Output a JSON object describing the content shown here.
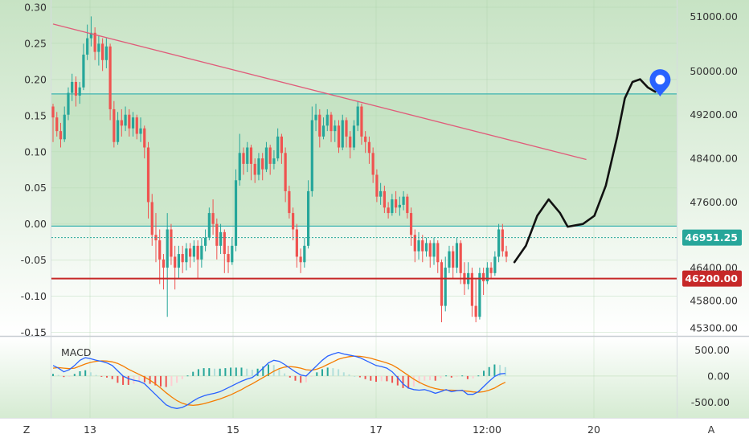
{
  "chart_data": [
    {
      "type": "candlestick",
      "x_ticks": [
        "13",
        "15",
        "17",
        "12:00",
        "20"
      ],
      "left_axis": {
        "ticks": [
          "0.30",
          "0.25",
          "0.20",
          "0.15",
          "0.10",
          "0.05",
          "0.00",
          "-0.05",
          "-0.10",
          "-0.15"
        ],
        "range": [
          -0.155,
          0.31
        ]
      },
      "right_axis": {
        "ticks": [
          "51000.00",
          "50000.00",
          "49200.00",
          "48400.00",
          "47600.00",
          "46400.00",
          "45800.00",
          "45300.00"
        ],
        "range": [
          45150,
          51300
        ]
      },
      "current_price": "46951.25",
      "support_price": "46200.00",
      "zone": {
        "top": 49580,
        "bottom": 47160
      },
      "trendline": {
        "from": [
          0,
          50860
        ],
        "to": [
          140,
          48380
        ]
      },
      "candles": [
        [
          49350,
          49150,
          49400,
          48700
        ],
        [
          49150,
          48900,
          49250,
          48800
        ],
        [
          48900,
          48750,
          49050,
          48600
        ],
        [
          48750,
          49200,
          49350,
          48700
        ],
        [
          49200,
          49600,
          49700,
          49100
        ],
        [
          49600,
          49800,
          49950,
          49450
        ],
        [
          49800,
          49550,
          49900,
          49350
        ],
        [
          49550,
          49700,
          49800,
          49400
        ],
        [
          49700,
          50300,
          50500,
          49650
        ],
        [
          50300,
          50600,
          50850,
          50200
        ],
        [
          50600,
          50700,
          51000,
          50450
        ],
        [
          50700,
          50350,
          50800,
          50200
        ],
        [
          50350,
          50500,
          50650,
          50100
        ],
        [
          50500,
          50200,
          50600,
          50000
        ],
        [
          50200,
          50450,
          50600,
          50050
        ],
        [
          50450,
          49300,
          50500,
          49100
        ],
        [
          49300,
          48700,
          49450,
          48600
        ],
        [
          48700,
          49100,
          49250,
          48650
        ],
        [
          49100,
          49000,
          49300,
          48800
        ],
        [
          49000,
          49200,
          49350,
          48900
        ],
        [
          49200,
          48950,
          49300,
          48800
        ],
        [
          48950,
          49150,
          49250,
          48800
        ],
        [
          49150,
          48850,
          49200,
          48750
        ],
        [
          48850,
          48950,
          49150,
          48700
        ],
        [
          48950,
          48600,
          49000,
          48400
        ],
        [
          48600,
          47600,
          48700,
          47300
        ],
        [
          47600,
          47000,
          47750,
          46800
        ],
        [
          47000,
          46900,
          47400,
          46500
        ],
        [
          46900,
          46550,
          47100,
          46100
        ],
        [
          46550,
          46400,
          46650,
          46000
        ],
        [
          46400,
          47100,
          47400,
          45500
        ],
        [
          47100,
          46600,
          47200,
          46450
        ],
        [
          46600,
          46400,
          46800,
          46000
        ],
        [
          46400,
          46650,
          46800,
          46200
        ],
        [
          46650,
          46500,
          46800,
          46300
        ],
        [
          46500,
          46750,
          46850,
          46350
        ],
        [
          46750,
          46600,
          46850,
          46400
        ],
        [
          46600,
          46800,
          46900,
          46500
        ],
        [
          46800,
          46550,
          46900,
          46200
        ],
        [
          46550,
          46800,
          46950,
          46400
        ],
        [
          46800,
          46950,
          47100,
          46700
        ],
        [
          46950,
          47400,
          47500,
          46900
        ],
        [
          47400,
          47200,
          47650,
          47000
        ],
        [
          47200,
          46800,
          47300,
          46550
        ],
        [
          46800,
          47050,
          47200,
          46650
        ],
        [
          47050,
          46650,
          47100,
          46300
        ],
        [
          46650,
          46500,
          46800,
          46300
        ],
        [
          46500,
          46800,
          46950,
          46450
        ],
        [
          46800,
          48000,
          48200,
          46700
        ],
        [
          48000,
          48500,
          48850,
          47900
        ],
        [
          48500,
          48300,
          48600,
          48100
        ],
        [
          48300,
          48600,
          48700,
          48150
        ],
        [
          48600,
          48300,
          48650,
          48000
        ],
        [
          48300,
          48100,
          48400,
          47950
        ],
        [
          48100,
          48400,
          48500,
          48000
        ],
        [
          48400,
          48200,
          48500,
          48000
        ],
        [
          48200,
          48600,
          48700,
          48150
        ],
        [
          48600,
          48300,
          48650,
          48100
        ],
        [
          48300,
          48400,
          48550,
          48200
        ],
        [
          48400,
          48800,
          48950,
          48350
        ],
        [
          48800,
          48500,
          48850,
          48300
        ],
        [
          48500,
          47800,
          48600,
          47600
        ],
        [
          47800,
          47400,
          47900,
          47300
        ],
        [
          47400,
          47100,
          47500,
          46900
        ],
        [
          47100,
          46600,
          47200,
          46400
        ],
        [
          46600,
          46500,
          46750,
          46300
        ],
        [
          46500,
          46800,
          46950,
          46400
        ],
        [
          46800,
          47800,
          48000,
          46750
        ],
        [
          47800,
          49100,
          49350,
          47700
        ],
        [
          49100,
          49200,
          49400,
          48900
        ],
        [
          49200,
          48800,
          49300,
          48600
        ],
        [
          48800,
          49000,
          49150,
          48750
        ],
        [
          49000,
          49200,
          49300,
          48900
        ],
        [
          49200,
          48900,
          49250,
          48700
        ],
        [
          48900,
          49000,
          49100,
          48700
        ],
        [
          49000,
          48600,
          49100,
          48500
        ],
        [
          48600,
          49100,
          49200,
          48550
        ],
        [
          49100,
          48800,
          49150,
          48600
        ],
        [
          48800,
          48600,
          48900,
          48400
        ],
        [
          48600,
          49000,
          49100,
          48550
        ],
        [
          49000,
          49350,
          49450,
          48900
        ],
        [
          49350,
          48800,
          49400,
          48650
        ],
        [
          48800,
          48700,
          48900,
          48500
        ],
        [
          48700,
          48500,
          48800,
          48300
        ],
        [
          48500,
          48100,
          48600,
          47950
        ],
        [
          48100,
          47700,
          48200,
          47600
        ],
        [
          47700,
          47800,
          47950,
          47550
        ],
        [
          47800,
          47500,
          47900,
          47400
        ],
        [
          47500,
          47400,
          47600,
          47300
        ],
        [
          47400,
          47650,
          47750,
          47350
        ],
        [
          47650,
          47500,
          47800,
          47400
        ],
        [
          47500,
          47550,
          47700,
          47350
        ],
        [
          47550,
          47700,
          47800,
          47450
        ],
        [
          47700,
          47400,
          47750,
          47300
        ],
        [
          47400,
          47000,
          47500,
          46800
        ],
        [
          47000,
          46700,
          47100,
          46500
        ],
        [
          46700,
          46900,
          47050,
          46550
        ],
        [
          46900,
          46700,
          47000,
          46500
        ],
        [
          46700,
          46850,
          46950,
          46600
        ],
        [
          46850,
          46600,
          46900,
          46400
        ],
        [
          46600,
          46850,
          46950,
          46450
        ],
        [
          46850,
          46500,
          46900,
          46300
        ],
        [
          46500,
          45700,
          46550,
          45400
        ],
        [
          45700,
          46400,
          46600,
          45600
        ],
        [
          46400,
          46700,
          46800,
          46300
        ],
        [
          46700,
          46400,
          46800,
          46200
        ],
        [
          46400,
          46850,
          46950,
          46300
        ],
        [
          46850,
          46300,
          46900,
          46100
        ],
        [
          46300,
          46100,
          46500,
          45900
        ],
        [
          46100,
          46300,
          46500,
          46000
        ],
        [
          46300,
          45700,
          46400,
          45500
        ],
        [
          45700,
          45500,
          46200,
          45400
        ],
        [
          45500,
          46300,
          46400,
          45450
        ],
        [
          46300,
          46150,
          46400,
          45900
        ],
        [
          46150,
          46400,
          46500,
          46100
        ],
        [
          46400,
          46300,
          46500,
          46200
        ],
        [
          46300,
          46600,
          46700,
          46250
        ],
        [
          46600,
          47100,
          47200,
          46500
        ],
        [
          47100,
          46700,
          47200,
          46600
        ],
        [
          46700,
          46600,
          46800,
          46500
        ]
      ],
      "projection": [
        [
          0,
          46500
        ],
        [
          3,
          46800
        ],
        [
          6,
          47350
        ],
        [
          9,
          47650
        ],
        [
          12,
          47400
        ],
        [
          14,
          47150
        ],
        [
          18,
          47200
        ],
        [
          21,
          47350
        ],
        [
          24,
          47900
        ],
        [
          27,
          48800
        ],
        [
          29,
          49500
        ],
        [
          31,
          49800
        ],
        [
          33,
          49850
        ],
        [
          35,
          49700
        ],
        [
          37,
          49620
        ]
      ]
    },
    {
      "type": "line",
      "title": "MACD",
      "y_ticks": [
        "500.00",
        "0.00",
        "-500.00"
      ],
      "ylim": [
        -800,
        750
      ],
      "series": [
        {
          "color": "#2962ff",
          "values": [
            200,
            150,
            80,
            120,
            200,
            300,
            350,
            330,
            300,
            280,
            250,
            200,
            100,
            0,
            -50,
            -80,
            -100,
            -150,
            -250,
            -350,
            -450,
            -550,
            -600,
            -620,
            -600,
            -550,
            -480,
            -420,
            -380,
            -350,
            -330,
            -300,
            -250,
            -200,
            -150,
            -100,
            -60,
            -30,
            50,
            150,
            250,
            300,
            280,
            220,
            150,
            80,
            20,
            0,
            100,
            200,
            300,
            380,
            420,
            450,
            420,
            400,
            380,
            350,
            300,
            250,
            200,
            180,
            150,
            80,
            -30,
            -150,
            -230,
            -260,
            -270,
            -260,
            -290,
            -330,
            -300,
            -260,
            -300,
            -280,
            -270,
            -350,
            -350,
            -300,
            -200,
            -100,
            -10,
            40,
            50
          ]
        },
        {
          "color": "#f57c00",
          "values": [
            150,
            160,
            150,
            140,
            150,
            190,
            230,
            260,
            280,
            290,
            285,
            270,
            240,
            190,
            130,
            80,
            30,
            -20,
            -80,
            -150,
            -230,
            -320,
            -400,
            -470,
            -520,
            -550,
            -560,
            -550,
            -530,
            -500,
            -470,
            -440,
            -400,
            -360,
            -310,
            -260,
            -200,
            -150,
            -90,
            -30,
            30,
            90,
            140,
            170,
            180,
            170,
            150,
            120,
            110,
            130,
            170,
            220,
            270,
            320,
            350,
            370,
            380,
            375,
            360,
            340,
            310,
            280,
            250,
            210,
            150,
            80,
            10,
            -60,
            -120,
            -170,
            -210,
            -240,
            -260,
            -270,
            -270,
            -275,
            -280,
            -290,
            -305,
            -310,
            -300,
            -270,
            -230,
            -170,
            -120
          ]
        },
        {
          "color": "#26a69a",
          "type": "histogram",
          "values": [
            40,
            20,
            -20,
            -10,
            40,
            90,
            110,
            70,
            20,
            -10,
            -30,
            -60,
            -130,
            -170,
            -170,
            -150,
            -120,
            -120,
            -150,
            -180,
            -200,
            -210,
            -190,
            -130,
            -60,
            10,
            80,
            130,
            150,
            150,
            140,
            140,
            150,
            160,
            160,
            160,
            140,
            120,
            140,
            180,
            220,
            210,
            140,
            50,
            -30,
            -90,
            -130,
            -120,
            -10,
            70,
            130,
            160,
            150,
            130,
            70,
            30,
            0,
            -25,
            -60,
            -90,
            -110,
            -100,
            -100,
            -130,
            -180,
            -230,
            -240,
            -200,
            -150,
            -90,
            -80,
            -90,
            -40,
            10,
            -30,
            -5,
            10,
            -60,
            -45,
            10,
            100,
            170,
            220,
            210,
            170
          ]
        }
      ]
    }
  ]
}
